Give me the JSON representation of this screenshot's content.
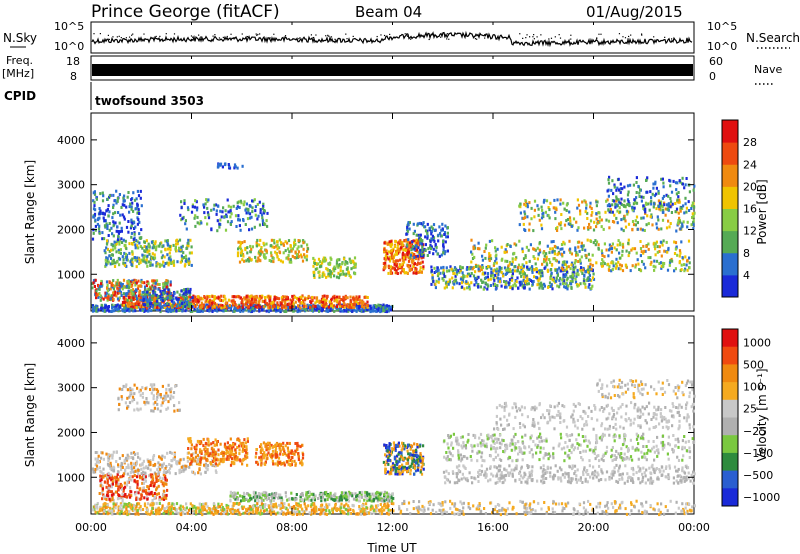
{
  "header": {
    "station": "Prince George (fitACF)",
    "beam": "Beam 04",
    "date": "01/Aug/2015"
  },
  "noise_panel": {
    "left_label": "N.Sky",
    "left_ticks": [
      "10^5",
      "10^0"
    ],
    "right_ticks": [
      "10^5",
      "10^0"
    ],
    "right_label": "N.Search"
  },
  "freq_panel": {
    "left_label": "Freq.",
    "left_unit": "[MHz]",
    "left_ticks": [
      "18",
      "8"
    ],
    "right_ticks": [
      "60",
      "0"
    ],
    "right_label": "Nave"
  },
  "cpid_panel": {
    "label": "CPID",
    "program": "twofsound 3503"
  },
  "x_axis": {
    "ticks": [
      "00:00",
      "04:00",
      "08:00",
      "12:00",
      "16:00",
      "20:00",
      "00:00"
    ],
    "label": "Time UT"
  },
  "colors": {
    "scale": [
      "#1a2ad8",
      "#2a6fd0",
      "#55aa55",
      "#88cc44",
      "#f0c400",
      "#f08a10",
      "#ee4a10",
      "#e01010"
    ],
    "vel_scale": [
      "#e01010",
      "#f04a10",
      "#f08a10",
      "#f5aa20",
      "#c8c8c8",
      "#b0b0b0",
      "#7ac840",
      "#2e8b3e",
      "#2a5ed0",
      "#1a2ad8"
    ]
  },
  "chart_data": [
    {
      "type": "heatmap",
      "title": "Power",
      "ylabel": "Slant Range [km]",
      "yticks": [
        "1000",
        "2000",
        "3000",
        "4000"
      ],
      "ylim": [
        180,
        4600
      ],
      "xlim_hours": [
        0,
        24
      ],
      "colorbar_label": "Power [dB]",
      "colorbar_ticks": [
        "4",
        "8",
        "12",
        "16",
        "20",
        "24",
        "28"
      ],
      "colorbar_range": [
        0,
        32
      ]
    },
    {
      "type": "heatmap",
      "title": "Velocity",
      "ylabel": "Slant Range [km]",
      "yticks": [
        "1000",
        "2000",
        "3000",
        "4000"
      ],
      "ylim": [
        180,
        4600
      ],
      "xlim_hours": [
        0,
        24
      ],
      "colorbar_label": "Velocity [m s⁻¹]",
      "colorbar_ticks": [
        "1000",
        "500",
        "100",
        "25",
        "−25",
        "−100",
        "−500",
        "−1000"
      ]
    }
  ]
}
